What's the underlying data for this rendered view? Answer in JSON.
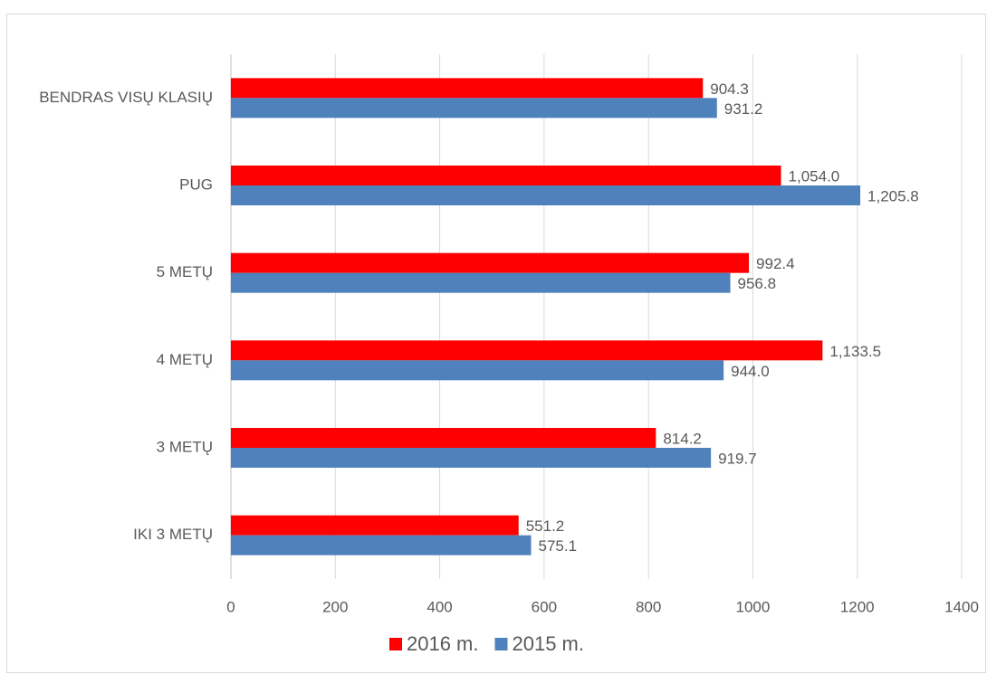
{
  "chart_data": {
    "type": "hbar",
    "categories": [
      "BENDRAS VISŲ KLASIŲ",
      "PUG",
      "5 METŲ",
      "4 METŲ",
      "3 METŲ",
      "IKI 3 METŲ"
    ],
    "series": [
      {
        "name": "2016 m.",
        "color": "#ff0000",
        "values": [
          904.3,
          1054.0,
          992.4,
          1133.5,
          814.2,
          551.2
        ],
        "value_labels": [
          "904.3",
          "1,054.0",
          "992.4",
          "1,133.5",
          "814.2",
          "551.2"
        ]
      },
      {
        "name": "2015 m.",
        "color": "#4f81bd",
        "values": [
          931.2,
          1205.8,
          956.8,
          944.0,
          919.7,
          575.1
        ],
        "value_labels": [
          "931.2",
          "1,205.8",
          "956.8",
          "944.0",
          "919.7",
          "575.1"
        ]
      }
    ],
    "xlim": [
      0,
      1400
    ],
    "xticks": [
      0,
      200,
      400,
      600,
      800,
      1000,
      1200,
      1400
    ],
    "grid": true,
    "legend": "bottom"
  }
}
